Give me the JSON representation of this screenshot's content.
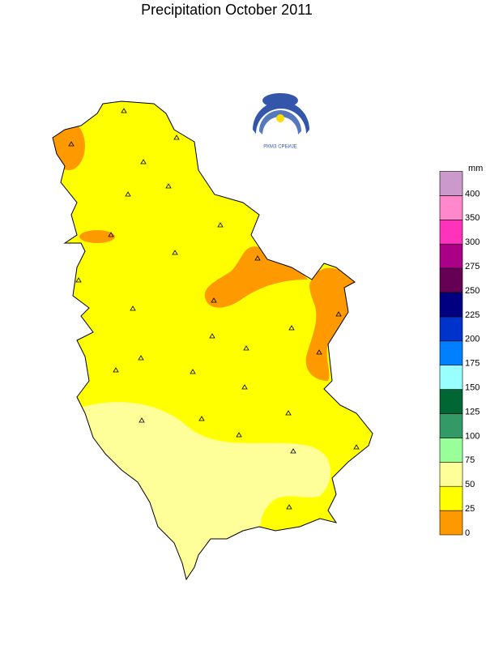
{
  "title": "Precipitation  October 2011",
  "logo": {
    "caption": "РХМЗ СРБИЈЕ"
  },
  "legend": {
    "unit": "mm",
    "bins": [
      {
        "label": 0,
        "color": "#ff9900"
      },
      {
        "label": 25,
        "color": "#ffff00"
      },
      {
        "label": 50,
        "color": "#ffff99"
      },
      {
        "label": 75,
        "color": "#99ff99"
      },
      {
        "label": 100,
        "color": "#339966"
      },
      {
        "label": 125,
        "color": "#006633"
      },
      {
        "label": 150,
        "color": "#99ffff"
      },
      {
        "label": 175,
        "color": "#0080ff"
      },
      {
        "label": 200,
        "color": "#0033cc"
      },
      {
        "label": 225,
        "color": "#000080"
      },
      {
        "label": 250,
        "color": "#660055"
      },
      {
        "label": 275,
        "color": "#aa0088"
      },
      {
        "label": 300,
        "color": "#ff33bb"
      },
      {
        "label": 350,
        "color": "#ff88cc"
      },
      {
        "label": 400,
        "color": "#cc99cc"
      }
    ]
  }
}
